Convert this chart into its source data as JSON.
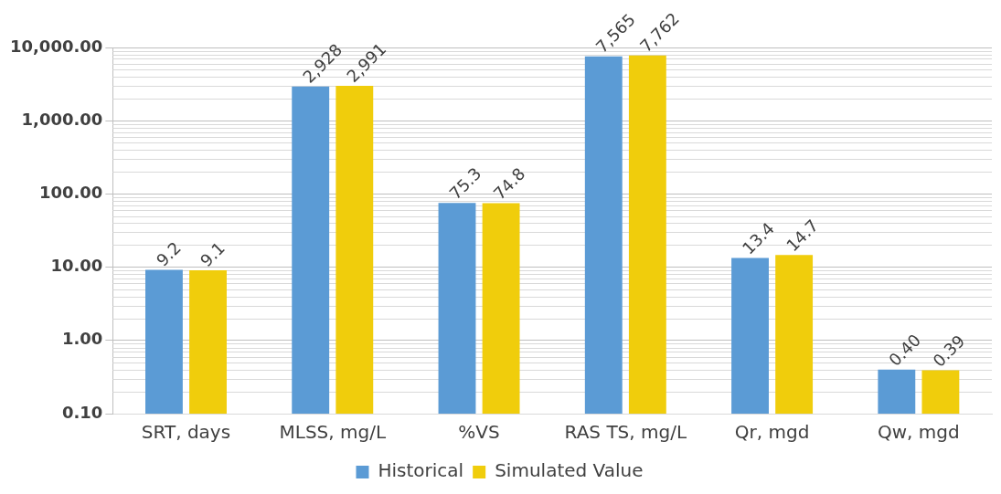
{
  "chart_data": {
    "type": "bar",
    "categories": [
      "SRT, days",
      "MLSS, mg/L",
      "%VS",
      "RAS TS, mg/L",
      "Qr, mgd",
      "Qw, mgd"
    ],
    "series": [
      {
        "name": "Historical",
        "color": "#5b9bd5",
        "values": [
          9.2,
          2928,
          75.3,
          7565,
          13.4,
          0.4
        ],
        "value_labels": [
          "9.2",
          "2,928",
          "75.3",
          "7,565",
          "13.4",
          "0.40"
        ]
      },
      {
        "name": "Simulated Value",
        "color": "#f0cd0c",
        "values": [
          9.1,
          2991,
          74.8,
          7762,
          14.7,
          0.39
        ],
        "value_labels": [
          "9.1",
          "2,991",
          "74.8",
          "7,762",
          "14.7",
          "0.39"
        ]
      }
    ],
    "log": "y",
    "ylim": [
      0.1,
      10000
    ],
    "yticks": [
      {
        "value": 0.1,
        "label": "0.10"
      },
      {
        "value": 1,
        "label": "1.00"
      },
      {
        "value": 10,
        "label": "10.00"
      },
      {
        "value": 100,
        "label": "100.00"
      },
      {
        "value": 1000,
        "label": "1,000.00"
      },
      {
        "value": 10000,
        "label": "10,000.00"
      }
    ],
    "grid": "y",
    "legend": "bottom"
  }
}
